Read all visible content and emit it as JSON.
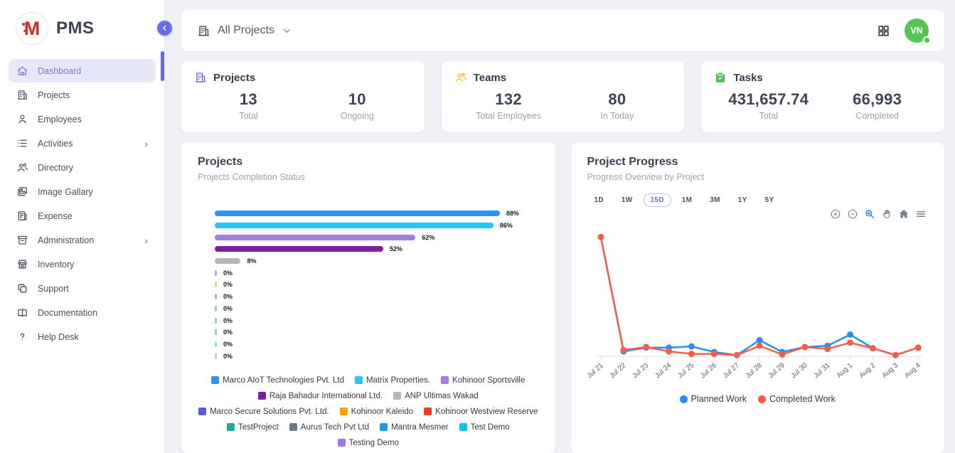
{
  "app": {
    "brand": "PMS",
    "logo_letter": "M"
  },
  "sidebar": {
    "items": [
      {
        "label": "Dashboard",
        "icon": "home",
        "active": true,
        "has_submenu": false
      },
      {
        "label": "Projects",
        "icon": "building",
        "active": false,
        "has_submenu": false
      },
      {
        "label": "Employees",
        "icon": "person",
        "active": false,
        "has_submenu": false
      },
      {
        "label": "Activities",
        "icon": "list",
        "active": false,
        "has_submenu": true
      },
      {
        "label": "Directory",
        "icon": "people",
        "active": false,
        "has_submenu": false
      },
      {
        "label": "Image Gallary",
        "icon": "image",
        "active": false,
        "has_submenu": false
      },
      {
        "label": "Expense",
        "icon": "receipt",
        "active": false,
        "has_submenu": false
      },
      {
        "label": "Administration",
        "icon": "archive",
        "active": false,
        "has_submenu": true
      },
      {
        "label": "Inventory",
        "icon": "store",
        "active": false,
        "has_submenu": false
      },
      {
        "label": "Support",
        "icon": "copy",
        "active": false,
        "has_submenu": false
      },
      {
        "label": "Documentation",
        "icon": "book",
        "active": false,
        "has_submenu": false
      },
      {
        "label": "Help Desk",
        "icon": "help",
        "active": false,
        "has_submenu": false
      }
    ]
  },
  "topbar": {
    "project_filter": "All Projects",
    "avatar_initials": "VN",
    "avatar_color": "#53c653",
    "status_color": "#43cc3e"
  },
  "stats": [
    {
      "title": "Projects",
      "icon": "building",
      "icon_color": "#6366f1",
      "metrics": [
        {
          "value": "13",
          "label": "Total"
        },
        {
          "value": "10",
          "label": "Ongoing"
        }
      ]
    },
    {
      "title": "Teams",
      "icon": "people",
      "icon_color": "#fbb324",
      "metrics": [
        {
          "value": "132",
          "label": "Total Employees"
        },
        {
          "value": "80",
          "label": "In Today"
        }
      ]
    },
    {
      "title": "Tasks",
      "icon": "clipboard",
      "icon_color": "#4cc04f",
      "metrics": [
        {
          "value": "431,657.74",
          "label": "Total"
        },
        {
          "value": "66,993",
          "label": "Completed"
        }
      ]
    }
  ],
  "panels": {
    "projects": {
      "title": "Projects",
      "subtitle": "Projects Completion Status"
    },
    "progress": {
      "title": "Project Progress",
      "subtitle": "Progress Overview by Project",
      "ranges": [
        "1D",
        "1W",
        "15D",
        "1M",
        "3M",
        "1Y",
        "5Y"
      ],
      "selected_range": "15D",
      "toolbar_icons": [
        "zoom-in",
        "zoom-out",
        "selection-zoom",
        "pan",
        "reset-home",
        "menu"
      ]
    }
  },
  "chart_data": [
    {
      "type": "bar",
      "orientation": "horizontal",
      "title": "Projects Completion Status",
      "unit": "%",
      "xlim": [
        0,
        100
      ],
      "categories": [
        "Marco AIoT Technologies Pvt. Ltd",
        "Matrix Properties.",
        "Kohinoor Sportsville",
        "Raja Bahadur International Ltd.",
        "ANP Ultimas Wakad",
        "Marco Secure Solutions Pvt. Ltd.",
        "Kohinoor Kaleido",
        "Kohinoor Westview Reserve",
        "TestProject",
        "Aurus Tech Pvt Ltd",
        "Mantra Mesmer",
        "Test Demo",
        "Testing Demo"
      ],
      "values": [
        88,
        86,
        62,
        52,
        8,
        0,
        0,
        0,
        0,
        0,
        0,
        0,
        0
      ],
      "colors": [
        "#2e93f5",
        "#29c5f6",
        "#a47fe0",
        "#7b1fa2",
        "#b5b5b5",
        "#5f5bd7",
        "#ffa000",
        "#e8401c",
        "#26a69a",
        "#66788a",
        "#2196f3",
        "#00c3f7",
        "#9c7ae0"
      ]
    },
    {
      "type": "line",
      "title": "Progress Overview by Project",
      "x": [
        "Jul 21",
        "Jul 22",
        "Jul 23",
        "Jul 24",
        "Jul 25",
        "Jul 26",
        "Jul 27",
        "Jul 28",
        "Jul 29",
        "Jul 30",
        "Jul 31",
        "Aug 1",
        "Aug 2",
        "Aug 3",
        "Aug 4"
      ],
      "series": [
        {
          "name": "Planned Work",
          "color": "#2590f2",
          "values": [
            96,
            4,
            7,
            7,
            8,
            3.5,
            1,
            13,
            3.5,
            7.5,
            8.5,
            17.5,
            6.5,
            1,
            7
          ]
        },
        {
          "name": "Completed Work",
          "color": "#f95d45",
          "values": [
            96,
            5,
            7.5,
            4,
            2,
            2,
            1,
            8.5,
            1.5,
            7.5,
            6,
            11,
            6.5,
            1,
            7
          ]
        }
      ],
      "ylim": [
        0,
        100
      ],
      "grid": false,
      "legend_position": "bottom"
    }
  ]
}
